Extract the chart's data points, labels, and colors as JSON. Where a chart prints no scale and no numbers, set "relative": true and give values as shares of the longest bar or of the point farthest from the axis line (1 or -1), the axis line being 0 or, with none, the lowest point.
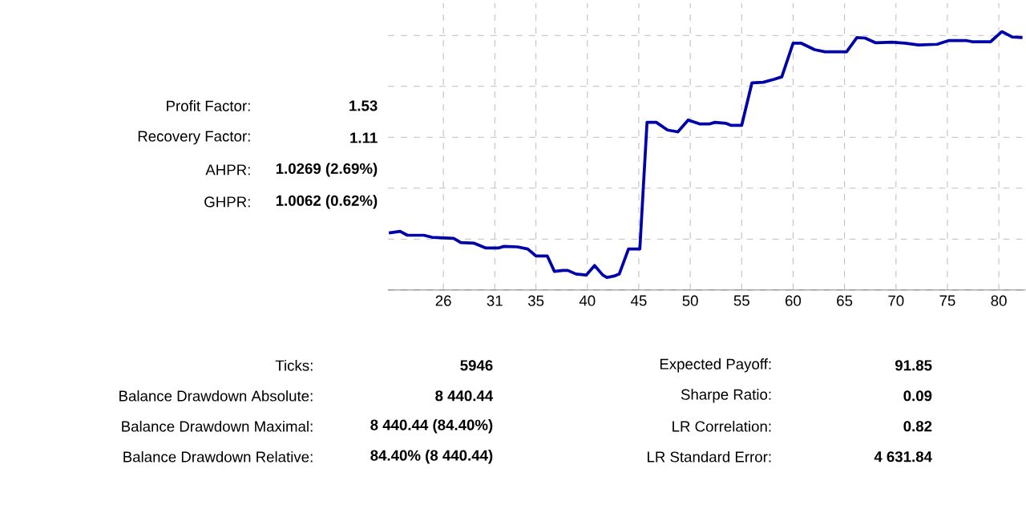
{
  "chart_data": {
    "type": "line",
    "relative": true,
    "color": "#0000aa",
    "grid": true,
    "line_style": "solid",
    "marker": "none",
    "xlim": [
      20.6,
      82.6
    ],
    "xticks": [
      26,
      31,
      35,
      40,
      45,
      50,
      55,
      60,
      65,
      70,
      75,
      80
    ],
    "x": [
      20.7,
      21.8,
      22.5,
      24.1,
      24.9,
      27.0,
      27.7,
      29.0,
      30.1,
      31.4,
      31.9,
      33.2,
      34.2,
      35.0,
      36.1,
      36.8,
      37.6,
      38.1,
      38.9,
      39.9,
      40.7,
      41.5,
      41.9,
      42.6,
      43.1,
      44.0,
      45.1,
      45.8,
      46.7,
      47.8,
      48.8,
      49.8,
      50.9,
      51.9,
      52.4,
      53.5,
      54.0,
      55.0,
      56.0,
      57.1,
      58.2,
      58.9,
      60.0,
      60.8,
      62.1,
      63.1,
      65.2,
      66.2,
      67.0,
      68.0,
      69.6,
      70.9,
      72.2,
      74.0,
      75.1,
      76.9,
      77.4,
      79.2,
      80.3,
      81.3,
      82.3
    ],
    "values": [
      0.221,
      0.227,
      0.212,
      0.212,
      0.204,
      0.2,
      0.184,
      0.181,
      0.163,
      0.163,
      0.169,
      0.167,
      0.159,
      0.132,
      0.132,
      0.072,
      0.076,
      0.076,
      0.062,
      0.058,
      0.095,
      0.058,
      0.049,
      0.054,
      0.062,
      0.159,
      0.159,
      0.649,
      0.649,
      0.619,
      0.612,
      0.658,
      0.643,
      0.643,
      0.649,
      0.645,
      0.637,
      0.637,
      0.802,
      0.804,
      0.816,
      0.825,
      0.955,
      0.955,
      0.93,
      0.922,
      0.922,
      0.977,
      0.975,
      0.957,
      0.959,
      0.955,
      0.948,
      0.951,
      0.965,
      0.965,
      0.961,
      0.961,
      1.0,
      0.979,
      0.977
    ],
    "annotations": [
      "Profit Factor:",
      "1.53",
      "Recovery Factor:",
      "1.11",
      "AHPR:",
      "1.0269 (2.69%)",
      "GHPR:",
      "1.0062 (0.62%)",
      "Ticks:",
      "5946",
      "Balance Drawdown Absolute:",
      "8 440.44",
      "Balance Drawdown Maximal:",
      "8 440.44 (84.40%)",
      "Balance Drawdown Relative:",
      "84.40% (8 440.44)",
      "Expected Payoff:",
      "91.85",
      "Sharpe Ratio:",
      "0.09",
      "LR Correlation:",
      "0.82",
      "LR Standard Error:",
      "4 631.84"
    ]
  }
}
